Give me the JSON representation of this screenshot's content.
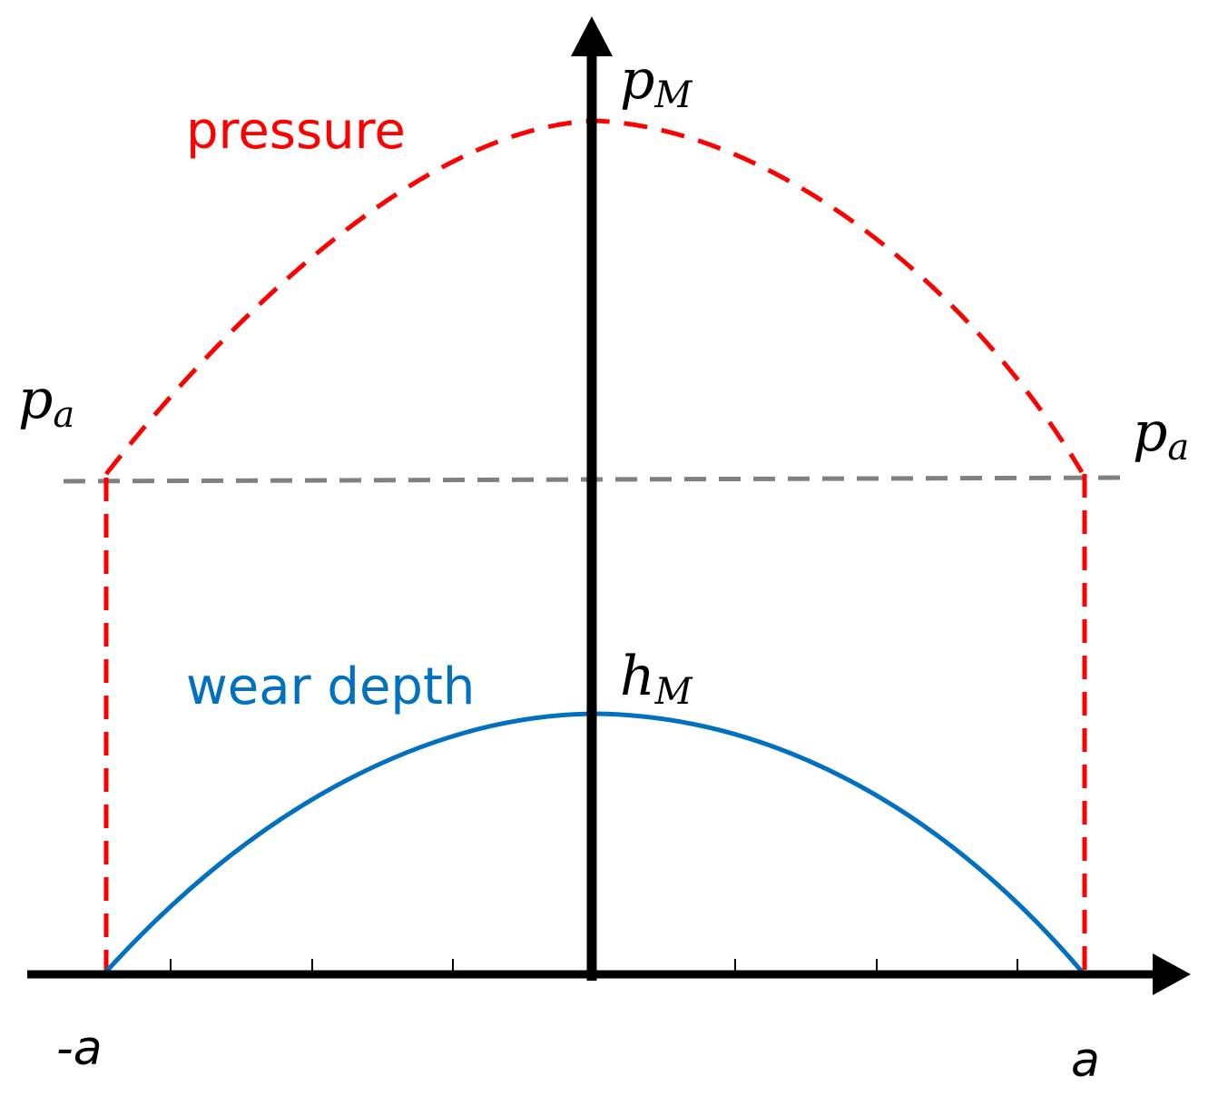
{
  "diagram": {
    "curves": {
      "pressure": {
        "label": "pressure",
        "color": "#ff0000",
        "style": "dashed"
      },
      "wear_depth": {
        "label": "wear depth",
        "color": "#0070c0",
        "style": "solid"
      },
      "ambient_line": {
        "color": "#808080",
        "style": "dashed"
      }
    },
    "labels": {
      "p_max": {
        "base": "p",
        "sub": "M"
      },
      "p_ambient": {
        "base": "p",
        "sub": "a"
      },
      "h_max": {
        "base": "h",
        "sub": "M"
      },
      "x_left": "-a",
      "x_right": "a"
    },
    "axis": {
      "color": "#000000",
      "x_ticks": 8
    }
  }
}
